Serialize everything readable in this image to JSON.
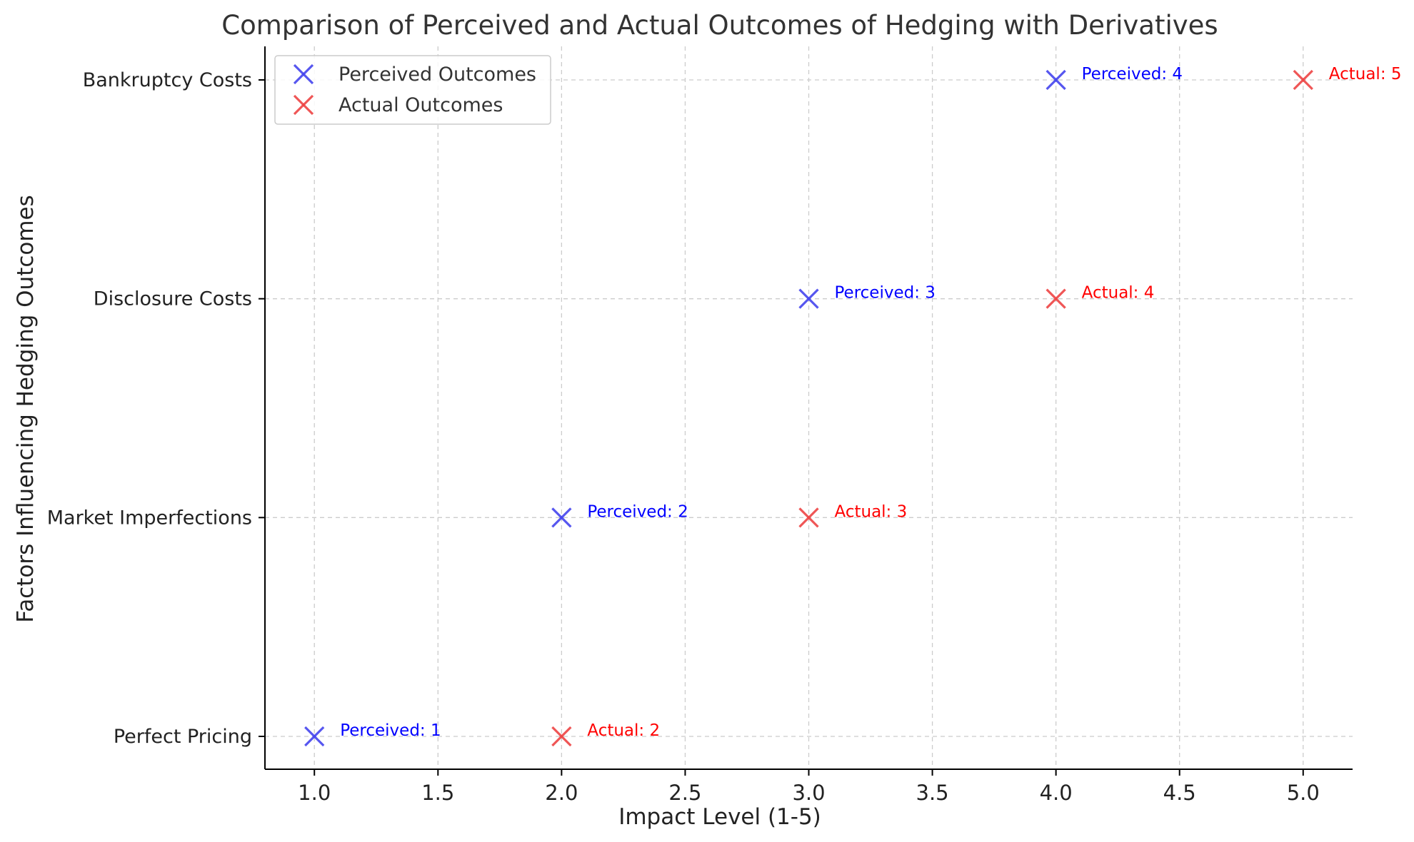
{
  "chart_data": {
    "type": "scatter",
    "title": "Comparison of Perceived and Actual Outcomes of Hedging with Derivatives",
    "xlabel": "Impact Level (1-5)",
    "ylabel": "Factors Influencing Hedging Outcomes",
    "xlim": [
      0.8,
      5.2
    ],
    "xticks": [
      1.0,
      1.5,
      2.0,
      2.5,
      3.0,
      3.5,
      4.0,
      4.5,
      5.0
    ],
    "xtick_labels": [
      "1.0",
      "1.5",
      "2.0",
      "2.5",
      "3.0",
      "3.5",
      "4.0",
      "4.5",
      "5.0"
    ],
    "categories": [
      "Perfect Pricing",
      "Market Imperfections",
      "Disclosure Costs",
      "Bankruptcy Costs"
    ],
    "grid": true,
    "legend_position": "top-left",
    "marker": "x",
    "series": [
      {
        "name": "Perceived Outcomes",
        "color": "#4444ee",
        "label_color": "#0000ff",
        "values": [
          1,
          2,
          3,
          4
        ],
        "annotations": [
          "Perceived: 1",
          "Perceived: 2",
          "Perceived: 3",
          "Perceived: 4"
        ]
      },
      {
        "name": "Actual Outcomes",
        "color": "#ee4444",
        "label_color": "#ff0000",
        "values": [
          2,
          3,
          4,
          5
        ],
        "annotations": [
          "Actual: 2",
          "Actual: 3",
          "Actual: 4",
          "Actual: 5"
        ]
      }
    ]
  }
}
